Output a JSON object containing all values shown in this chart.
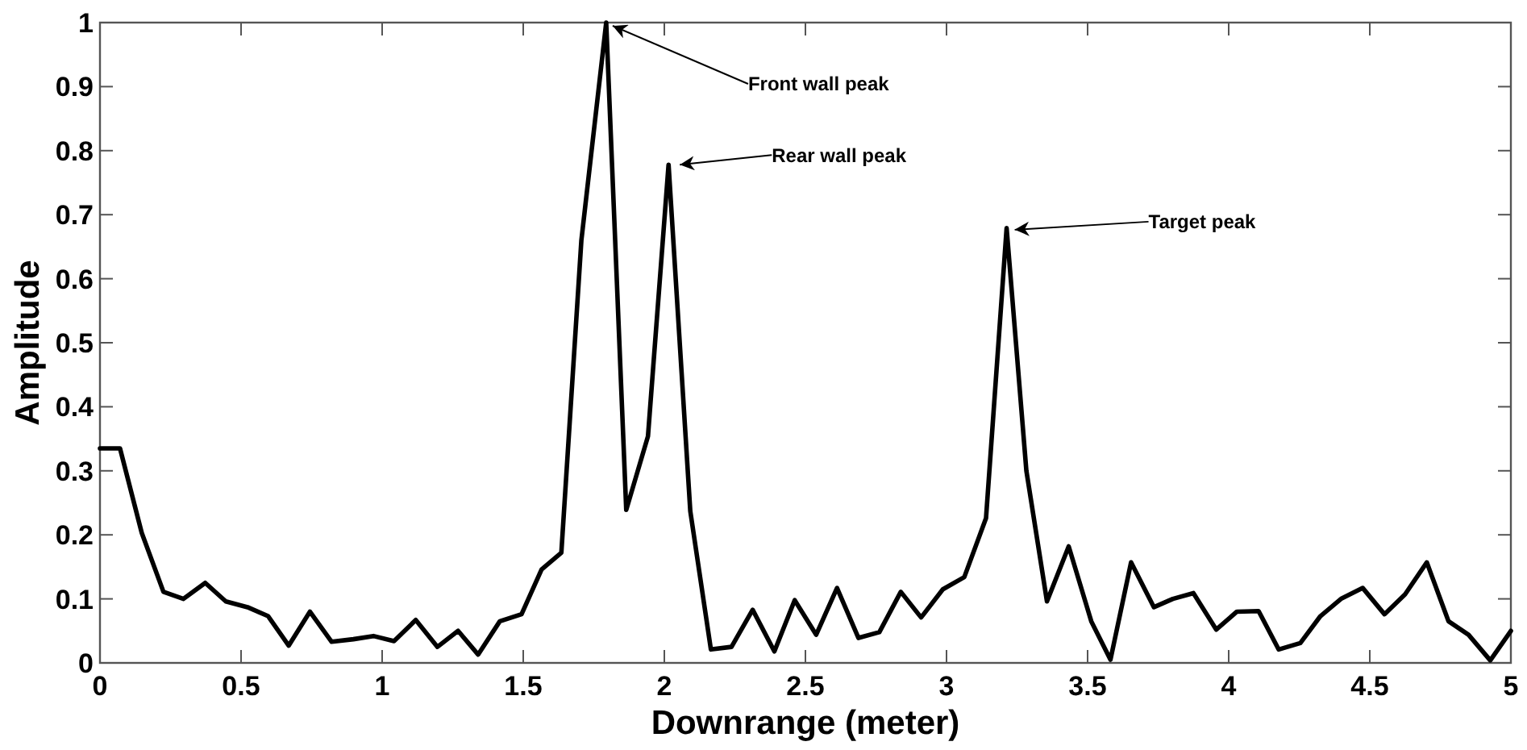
{
  "chart_data": {
    "type": "line",
    "xlabel": "Downrange (meter)",
    "ylabel": "Amplitude",
    "x": [
      0,
      0.071,
      0.148,
      0.225,
      0.296,
      0.373,
      0.446,
      0.523,
      0.596,
      0.669,
      0.744,
      0.821,
      0.898,
      0.969,
      1.042,
      1.119,
      1.196,
      1.269,
      1.34,
      1.417,
      1.494,
      1.565,
      1.635,
      1.706,
      1.794,
      1.865,
      1.942,
      2.015,
      2.092,
      2.165,
      2.238,
      2.313,
      2.39,
      2.462,
      2.538,
      2.612,
      2.688,
      2.762,
      2.838,
      2.91,
      2.987,
      3.063,
      3.14,
      3.213,
      3.283,
      3.356,
      3.433,
      3.513,
      3.581,
      3.654,
      3.735,
      3.802,
      3.875,
      3.956,
      4.029,
      4.106,
      4.177,
      4.254,
      4.325,
      4.398,
      4.475,
      4.552,
      4.625,
      4.702,
      4.779,
      4.85,
      4.927,
      5
    ],
    "series": [
      {
        "color": "#000000",
        "values": [
          0.335,
          0.335,
          0.203,
          0.111,
          0.1,
          0.125,
          0.096,
          0.087,
          0.073,
          0.027,
          0.08,
          0.033,
          0.037,
          0.042,
          0.034,
          0.067,
          0.025,
          0.05,
          0.013,
          0.065,
          0.076,
          0.146,
          0.172,
          0.66,
          1.0,
          0.239,
          0.354,
          0.778,
          0.237,
          0.021,
          0.025,
          0.083,
          0.018,
          0.098,
          0.044,
          0.117,
          0.039,
          0.048,
          0.111,
          0.071,
          0.115,
          0.134,
          0.226,
          0.679,
          0.3,
          0.096,
          0.182,
          0.065,
          0.005,
          0.157,
          0.087,
          0.1,
          0.109,
          0.052,
          0.08,
          0.081,
          0.021,
          0.031,
          0.073,
          0.1,
          0.117,
          0.076,
          0.107,
          0.157,
          0.065,
          0.044,
          0.004,
          0.05
        ]
      }
    ],
    "xlim": [
      0,
      5
    ],
    "ylim": [
      0,
      1
    ],
    "xticks": [
      0,
      0.5,
      1,
      1.5,
      2,
      2.5,
      3,
      3.5,
      4,
      4.5,
      5
    ],
    "yticks": [
      0,
      0.1,
      0.2,
      0.3,
      0.4,
      0.5,
      0.6,
      0.7,
      0.8,
      0.9,
      1
    ],
    "grid": false,
    "marker": "none",
    "line_style": "solid",
    "annotations": [
      {
        "text": "Front wall peak",
        "x": 1.794,
        "y": 1.0
      },
      {
        "text": "Rear wall peak",
        "x": 2.015,
        "y": 0.778
      },
      {
        "text": "Target peak",
        "x": 3.213,
        "y": 0.679
      }
    ]
  }
}
